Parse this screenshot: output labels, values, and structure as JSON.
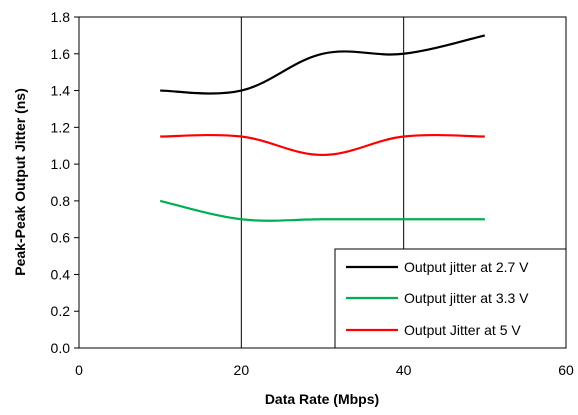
{
  "chart_data": {
    "type": "line",
    "title": "",
    "xlabel": "Data Rate (Mbps)",
    "ylabel": "Peak-Peak Output Jitter (ns)",
    "xlim": [
      0,
      60
    ],
    "ylim": [
      0.0,
      1.8
    ],
    "x_ticks": [
      "0",
      "20",
      "40",
      "60"
    ],
    "y_ticks": [
      "0.0",
      "0.2",
      "0.4",
      "0.6",
      "0.8",
      "1.0",
      "1.2",
      "1.4",
      "1.6",
      "1.8"
    ],
    "grid": "vertical",
    "legend_position": "bottom-right",
    "series": [
      {
        "name": "Output jitter at 2.7 V",
        "color": "#000000",
        "x": [
          10,
          20,
          30,
          40,
          50
        ],
        "y": [
          1.4,
          1.4,
          1.6,
          1.6,
          1.7
        ]
      },
      {
        "name": "Output jitter at 3.3 V",
        "color": "#00b050",
        "x": [
          10,
          20,
          30,
          40,
          50
        ],
        "y": [
          0.8,
          0.7,
          0.7,
          0.7,
          0.7
        ]
      },
      {
        "name": "Output Jitter at 5 V",
        "color": "#ff0000",
        "x": [
          10,
          20,
          30,
          40,
          50
        ],
        "y": [
          1.15,
          1.15,
          1.05,
          1.15,
          1.15
        ]
      }
    ]
  }
}
